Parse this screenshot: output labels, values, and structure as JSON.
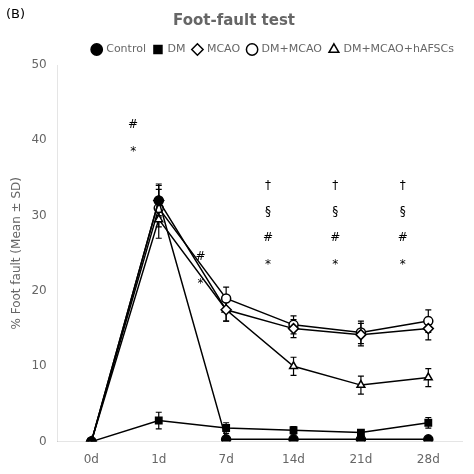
{
  "chart_data": {
    "type": "line",
    "title": "Foot-fault test",
    "panel_label": "(B)",
    "ylabel": "% Foot fault (Mean ± SD)",
    "categories": [
      "0d",
      "1d",
      "7d",
      "14d",
      "21d",
      "28d"
    ],
    "ylim": [
      0,
      50
    ],
    "yticks": [
      0,
      10,
      20,
      30,
      40,
      50
    ],
    "grid": false,
    "legend": "upper right",
    "series": [
      {
        "name": "Control",
        "color": "black",
        "marker": "filled_circle",
        "values": [
          0,
          32.0,
          0.3,
          0.3,
          0.3,
          0.3
        ],
        "errors": [
          0,
          2.2,
          0,
          0,
          0,
          0
        ]
      },
      {
        "name": "DM",
        "color": "black",
        "marker": "filled_square",
        "values": [
          0,
          2.8,
          1.8,
          1.5,
          1.2,
          2.5
        ],
        "errors": [
          0,
          1.1,
          0.7,
          0.5,
          0.4,
          0.7
        ]
      },
      {
        "name": "MCAO",
        "color": "black",
        "marker": "open_diamond",
        "values": [
          0,
          32.0,
          17.5,
          15.0,
          14.2,
          15.0
        ],
        "errors": [
          0,
          2.0,
          1.5,
          1.2,
          1.5,
          1.5
        ]
      },
      {
        "name": "DM+MCAO",
        "color": "black",
        "marker": "open_circle",
        "values": [
          0,
          31.0,
          19.0,
          15.5,
          14.5,
          16.0
        ],
        "errors": [
          0,
          2.5,
          1.5,
          1.2,
          1.5,
          1.5
        ]
      },
      {
        "name": "DM+MCAO+hAFSCs",
        "color": "black",
        "marker": "open_triangle",
        "values": [
          0,
          29.5,
          17.5,
          10.0,
          7.5,
          8.5
        ],
        "errors": [
          0,
          2.5,
          1.5,
          1.2,
          1.2,
          1.2
        ]
      }
    ],
    "annotations": [
      {
        "category": "1d",
        "y": 42.0,
        "text": "#"
      },
      {
        "category": "1d",
        "y": 38.5,
        "text": "*"
      },
      {
        "category": "7d",
        "y": 24.5,
        "text": "#"
      },
      {
        "category": "7d",
        "y": 21.0,
        "text": "*"
      },
      {
        "category": "14d",
        "y": 34.0,
        "text": "†"
      },
      {
        "category": "14d",
        "y": 30.5,
        "text": "§"
      },
      {
        "category": "14d",
        "y": 27.0,
        "text": "#"
      },
      {
        "category": "14d",
        "y": 23.5,
        "text": "*"
      },
      {
        "category": "21d",
        "y": 34.0,
        "text": "†"
      },
      {
        "category": "21d",
        "y": 30.5,
        "text": "§"
      },
      {
        "category": "21d",
        "y": 27.0,
        "text": "#"
      },
      {
        "category": "21d",
        "y": 23.5,
        "text": "*"
      },
      {
        "category": "28d",
        "y": 34.0,
        "text": "†"
      },
      {
        "category": "28d",
        "y": 30.5,
        "text": "§"
      },
      {
        "category": "28d",
        "y": 27.0,
        "text": "#"
      },
      {
        "category": "28d",
        "y": 23.5,
        "text": "*"
      }
    ]
  }
}
